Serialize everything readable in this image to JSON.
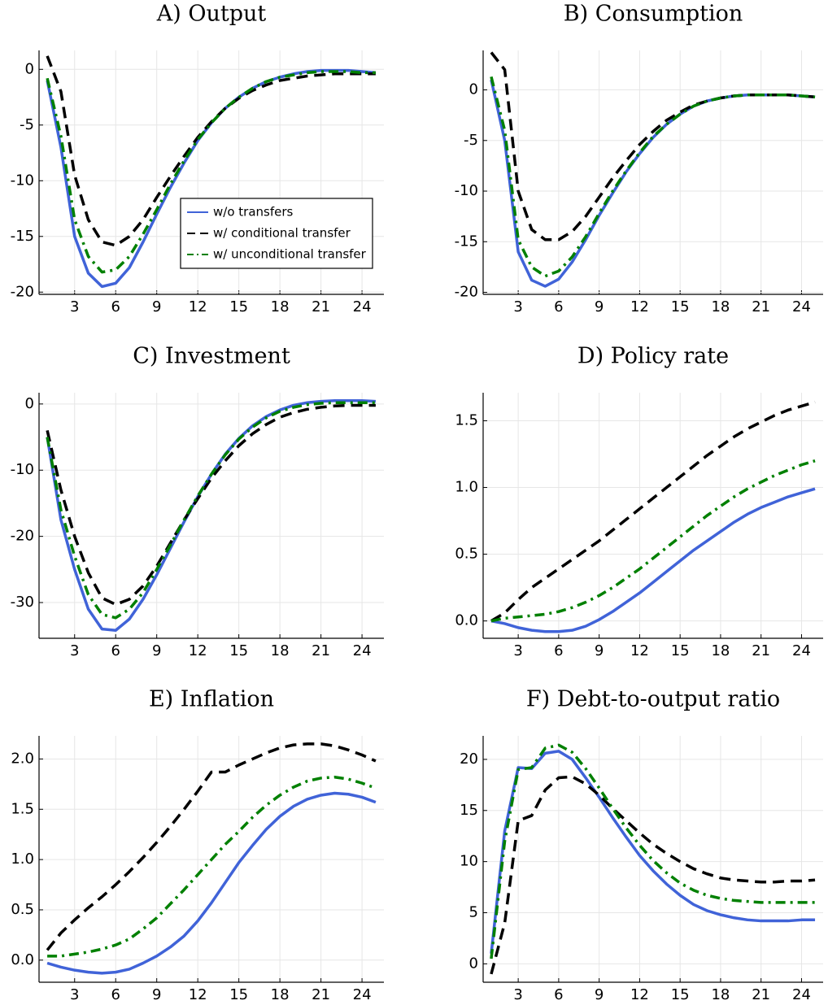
{
  "chart_data": [
    {
      "type": "line",
      "title": "A) Output",
      "x": [
        1,
        2,
        3,
        4,
        5,
        6,
        7,
        8,
        9,
        10,
        11,
        12,
        13,
        14,
        15,
        16,
        17,
        18,
        19,
        20,
        21,
        22,
        23,
        24,
        25
      ],
      "xlim": [
        0.4,
        25.6
      ],
      "xticks": [
        3,
        6,
        9,
        12,
        15,
        18,
        21,
        24
      ],
      "ylim": [
        -20.2,
        1.7
      ],
      "yticks": [
        -20,
        -15,
        -10,
        -5,
        0
      ],
      "grid": true,
      "legend": "center-right",
      "series": [
        {
          "name": "w/o transfers",
          "color": "#4063d8",
          "dash": "solid",
          "values": [
            -1,
            -7,
            -15,
            -18.3,
            -19.5,
            -19.2,
            -17.8,
            -15.5,
            -13,
            -10.6,
            -8.4,
            -6.4,
            -4.8,
            -3.5,
            -2.5,
            -1.7,
            -1.1,
            -0.7,
            -0.4,
            -0.2,
            -0.1,
            -0.1,
            -0.1,
            -0.2,
            -0.3
          ]
        },
        {
          "name": "w/ conditional transfer",
          "color": "#000000",
          "dash": "dashed",
          "values": [
            1.2,
            -2,
            -9.5,
            -13.5,
            -15.5,
            -15.8,
            -15,
            -13.5,
            -11.5,
            -9.6,
            -7.8,
            -6.1,
            -4.7,
            -3.5,
            -2.6,
            -1.9,
            -1.4,
            -1,
            -0.8,
            -0.6,
            -0.5,
            -0.4,
            -0.4,
            -0.4,
            -0.4
          ]
        },
        {
          "name": "w/ unconditional transfer",
          "color": "#008000",
          "dash": "dashdot",
          "values": [
            -0.8,
            -6,
            -13.5,
            -16.8,
            -18.2,
            -18,
            -16.8,
            -14.8,
            -12.6,
            -10.3,
            -8.2,
            -6.3,
            -4.8,
            -3.5,
            -2.5,
            -1.7,
            -1.1,
            -0.7,
            -0.5,
            -0.3,
            -0.2,
            -0.2,
            -0.2,
            -0.3,
            -0.3
          ]
        }
      ]
    },
    {
      "type": "line",
      "title": "B) Consumption",
      "x": [
        1,
        2,
        3,
        4,
        5,
        6,
        7,
        8,
        9,
        10,
        11,
        12,
        13,
        14,
        15,
        16,
        17,
        18,
        19,
        20,
        21,
        22,
        23,
        24,
        25
      ],
      "xlim": [
        0.4,
        25.6
      ],
      "xticks": [
        3,
        6,
        9,
        12,
        15,
        18,
        21,
        24
      ],
      "ylim": [
        -20.2,
        3.9
      ],
      "yticks": [
        -20,
        -15,
        -10,
        -5,
        0
      ],
      "grid": true,
      "series": [
        {
          "color": "#4063d8",
          "dash": "solid",
          "values": [
            1,
            -5,
            -16,
            -18.8,
            -19.4,
            -18.7,
            -17,
            -14.8,
            -12.4,
            -10.2,
            -8.1,
            -6.3,
            -4.7,
            -3.4,
            -2.4,
            -1.6,
            -1.1,
            -0.8,
            -0.6,
            -0.5,
            -0.5,
            -0.5,
            -0.5,
            -0.6,
            -0.7
          ]
        },
        {
          "color": "#000000",
          "dash": "dashed",
          "values": [
            3.7,
            2,
            -10,
            -13.8,
            -14.8,
            -14.8,
            -14,
            -12.5,
            -10.6,
            -8.7,
            -7,
            -5.4,
            -4.1,
            -3,
            -2.2,
            -1.5,
            -1.1,
            -0.8,
            -0.6,
            -0.5,
            -0.5,
            -0.5,
            -0.5,
            -0.6,
            -0.7
          ]
        },
        {
          "color": "#008000",
          "dash": "dashdot",
          "values": [
            1.3,
            -4,
            -14.8,
            -17.5,
            -18.4,
            -17.9,
            -16.5,
            -14.5,
            -12.2,
            -10,
            -8,
            -6.2,
            -4.6,
            -3.4,
            -2.4,
            -1.6,
            -1.1,
            -0.8,
            -0.6,
            -0.5,
            -0.5,
            -0.5,
            -0.5,
            -0.6,
            -0.7
          ]
        }
      ]
    },
    {
      "type": "line",
      "title": "C) Investment",
      "x": [
        1,
        2,
        3,
        4,
        5,
        6,
        7,
        8,
        9,
        10,
        11,
        12,
        13,
        14,
        15,
        16,
        17,
        18,
        19,
        20,
        21,
        22,
        23,
        24,
        25
      ],
      "xlim": [
        0.4,
        25.6
      ],
      "xticks": [
        3,
        6,
        9,
        12,
        15,
        18,
        21,
        24
      ],
      "ylim": [
        -35.4,
        1.7
      ],
      "yticks": [
        -30,
        -20,
        -10,
        0
      ],
      "grid": true,
      "series": [
        {
          "color": "#4063d8",
          "dash": "solid",
          "values": [
            -5,
            -17.5,
            -25,
            -31,
            -34,
            -34.2,
            -32.5,
            -29.5,
            -25.8,
            -21.8,
            -17.8,
            -14,
            -10.6,
            -7.6,
            -5.2,
            -3.3,
            -1.9,
            -0.9,
            -0.2,
            0.2,
            0.4,
            0.5,
            0.5,
            0.5,
            0.4
          ]
        },
        {
          "color": "#000000",
          "dash": "dashed",
          "values": [
            -4,
            -13,
            -20,
            -25.5,
            -29.3,
            -30.3,
            -29.5,
            -27.5,
            -24.5,
            -21,
            -17.5,
            -14.3,
            -11.2,
            -8.6,
            -6.3,
            -4.5,
            -3.1,
            -2,
            -1.3,
            -0.8,
            -0.5,
            -0.3,
            -0.2,
            -0.2,
            -0.2
          ]
        },
        {
          "color": "#008000",
          "dash": "dashdot",
          "values": [
            -5,
            -16,
            -23,
            -28.8,
            -31.8,
            -32.3,
            -31,
            -28.5,
            -25,
            -21.3,
            -17.5,
            -13.9,
            -10.6,
            -7.7,
            -5.3,
            -3.5,
            -2.1,
            -1.1,
            -0.5,
            -0.1,
            0.1,
            0.2,
            0.2,
            0.2,
            0.2
          ]
        }
      ]
    },
    {
      "type": "line",
      "title": "D) Policy rate",
      "x": [
        1,
        2,
        3,
        4,
        5,
        6,
        7,
        8,
        9,
        10,
        11,
        12,
        13,
        14,
        15,
        16,
        17,
        18,
        19,
        20,
        21,
        22,
        23,
        24,
        25
      ],
      "xlim": [
        0.4,
        25.6
      ],
      "xticks": [
        3,
        6,
        9,
        12,
        15,
        18,
        21,
        24
      ],
      "ylim": [
        -0.13,
        1.71
      ],
      "yticks": [
        {
          "value": 0,
          "label": "0.0"
        },
        0.5,
        {
          "value": 1,
          "label": "1.0"
        },
        1.5
      ],
      "grid": true,
      "series": [
        {
          "color": "#4063d8",
          "dash": "solid",
          "values": [
            0,
            -0.02,
            -0.05,
            -0.07,
            -0.08,
            -0.08,
            -0.07,
            -0.04,
            0.01,
            0.07,
            0.14,
            0.21,
            0.29,
            0.37,
            0.45,
            0.53,
            0.6,
            0.67,
            0.74,
            0.8,
            0.85,
            0.89,
            0.93,
            0.96,
            0.99
          ]
        },
        {
          "color": "#000000",
          "dash": "dashed",
          "values": [
            0,
            0.06,
            0.16,
            0.25,
            0.32,
            0.39,
            0.46,
            0.53,
            0.6,
            0.68,
            0.76,
            0.84,
            0.92,
            1.0,
            1.08,
            1.16,
            1.24,
            1.31,
            1.38,
            1.44,
            1.49,
            1.54,
            1.58,
            1.61,
            1.64
          ]
        },
        {
          "color": "#008000",
          "dash": "dashdot",
          "values": [
            0,
            0.02,
            0.03,
            0.04,
            0.05,
            0.07,
            0.1,
            0.14,
            0.19,
            0.25,
            0.32,
            0.39,
            0.47,
            0.55,
            0.63,
            0.71,
            0.79,
            0.86,
            0.93,
            0.99,
            1.04,
            1.09,
            1.13,
            1.17,
            1.2
          ]
        }
      ]
    },
    {
      "type": "line",
      "title": "E) Inflation",
      "x": [
        1,
        2,
        3,
        4,
        5,
        6,
        7,
        8,
        9,
        10,
        11,
        12,
        13,
        14,
        15,
        16,
        17,
        18,
        19,
        20,
        21,
        22,
        23,
        24,
        25
      ],
      "xlim": [
        0.4,
        25.6
      ],
      "xticks": [
        3,
        6,
        9,
        12,
        15,
        18,
        21,
        24
      ],
      "ylim": [
        -0.22,
        2.23
      ],
      "yticks": [
        {
          "value": 0,
          "label": "0.0"
        },
        0.5,
        {
          "value": 1,
          "label": "1.0"
        },
        1.5,
        {
          "value": 2,
          "label": "2.0"
        }
      ],
      "grid": true,
      "series": [
        {
          "color": "#4063d8",
          "dash": "solid",
          "values": [
            -0.03,
            -0.07,
            -0.1,
            -0.12,
            -0.13,
            -0.12,
            -0.09,
            -0.03,
            0.04,
            0.13,
            0.24,
            0.39,
            0.57,
            0.77,
            0.97,
            1.14,
            1.3,
            1.43,
            1.53,
            1.6,
            1.64,
            1.66,
            1.65,
            1.62,
            1.57
          ]
        },
        {
          "color": "#000000",
          "dash": "dashed",
          "values": [
            0.1,
            0.27,
            0.4,
            0.52,
            0.63,
            0.75,
            0.88,
            1.02,
            1.17,
            1.33,
            1.5,
            1.68,
            1.87,
            1.87,
            1.94,
            2.0,
            2.06,
            2.11,
            2.14,
            2.15,
            2.15,
            2.13,
            2.09,
            2.04,
            1.98
          ]
        },
        {
          "color": "#008000",
          "dash": "dashdot",
          "values": [
            0.04,
            0.04,
            0.06,
            0.08,
            0.11,
            0.15,
            0.21,
            0.31,
            0.42,
            0.56,
            0.7,
            0.85,
            1.0,
            1.15,
            1.28,
            1.42,
            1.54,
            1.64,
            1.72,
            1.78,
            1.81,
            1.82,
            1.8,
            1.76,
            1.71
          ]
        }
      ]
    },
    {
      "type": "line",
      "title": "F) Debt-to-output ratio",
      "x": [
        1,
        2,
        3,
        4,
        5,
        6,
        7,
        8,
        9,
        10,
        11,
        12,
        13,
        14,
        15,
        16,
        17,
        18,
        19,
        20,
        21,
        22,
        23,
        24,
        25
      ],
      "xlim": [
        0.4,
        25.6
      ],
      "xticks": [
        3,
        6,
        9,
        12,
        15,
        18,
        21,
        24
      ],
      "ylim": [
        -1.8,
        22.3
      ],
      "yticks": [
        0,
        5,
        10,
        15,
        20
      ],
      "grid": true,
      "series": [
        {
          "color": "#4063d8",
          "dash": "solid",
          "values": [
            1,
            13,
            19.2,
            19.1,
            20.6,
            20.8,
            20,
            18.2,
            16.3,
            14.3,
            12.4,
            10.6,
            9.1,
            7.8,
            6.7,
            5.8,
            5.2,
            4.8,
            4.5,
            4.3,
            4.2,
            4.2,
            4.2,
            4.3,
            4.3
          ]
        },
        {
          "color": "#000000",
          "dash": "dashed",
          "values": [
            -1,
            4,
            14,
            14.5,
            17,
            18.2,
            18.3,
            17.6,
            16.5,
            15.2,
            14,
            12.8,
            11.7,
            10.8,
            10,
            9.3,
            8.8,
            8.4,
            8.2,
            8.1,
            8.0,
            8.0,
            8.1,
            8.1,
            8.2
          ]
        },
        {
          "color": "#008000",
          "dash": "dashdot",
          "values": [
            0.5,
            12,
            19,
            19.2,
            21.1,
            21.4,
            20.7,
            19.1,
            17.2,
            15.2,
            13.3,
            11.6,
            10.1,
            8.9,
            7.9,
            7.2,
            6.7,
            6.4,
            6.2,
            6.1,
            6.0,
            6.0,
            6.0,
            6.0,
            6.0
          ]
        }
      ]
    }
  ]
}
